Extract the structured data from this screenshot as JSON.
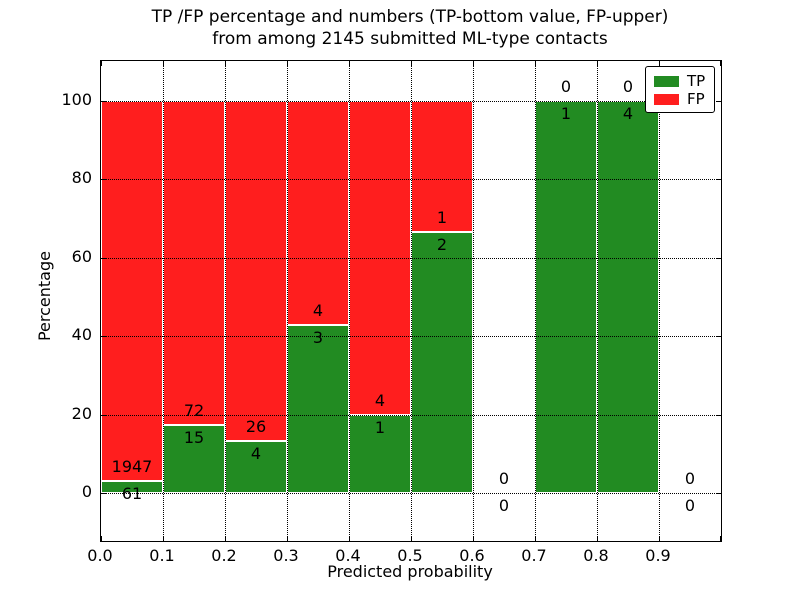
{
  "title": {
    "line1": "TP /FP percentage and numbers (TP-bottom value, FP-upper)",
    "line2": "from among 2145 submitted ML-type contacts"
  },
  "axes": {
    "xlabel": "Predicted probability",
    "ylabel": "Percentage",
    "x_ticks": [
      "0.0",
      "0.1",
      "0.2",
      "0.3",
      "0.4",
      "0.5",
      "0.6",
      "0.7",
      "0.8",
      "0.9"
    ],
    "y_ticks": [
      "0",
      "20",
      "40",
      "60",
      "80",
      "100"
    ],
    "y_tick_values": [
      0,
      20,
      40,
      60,
      80,
      100
    ],
    "grid": "dotted"
  },
  "legend": {
    "position": "upper right",
    "items": [
      {
        "label": "TP",
        "color": "#228B22"
      },
      {
        "label": "FP",
        "color": "#FF1E1E"
      }
    ]
  },
  "colors": {
    "tp": "#228B22",
    "fp": "#FF1E1E",
    "bar_edge": "#FFFFFF",
    "grid": "#000000",
    "background": "#FFFFFF"
  },
  "chart_data": {
    "type": "bar",
    "stacked": true,
    "normalized_to_percent": true,
    "title": "TP /FP percentage and numbers (TP-bottom value, FP-upper) from among 2145 submitted ML-type contacts",
    "xlabel": "Predicted probability",
    "ylabel": "Percentage",
    "xlim": [
      0.0,
      1.0
    ],
    "ylim": [
      0,
      100
    ],
    "x_bins": [
      [
        0.0,
        0.1
      ],
      [
        0.1,
        0.2
      ],
      [
        0.2,
        0.3
      ],
      [
        0.3,
        0.4
      ],
      [
        0.4,
        0.5
      ],
      [
        0.5,
        0.6
      ],
      [
        0.6,
        0.7
      ],
      [
        0.7,
        0.8
      ],
      [
        0.8,
        0.9
      ],
      [
        0.9,
        1.0
      ]
    ],
    "series": [
      {
        "name": "TP",
        "color": "#228B22",
        "counts": [
          61,
          15,
          4,
          3,
          1,
          2,
          0,
          1,
          4,
          0
        ]
      },
      {
        "name": "FP",
        "color": "#FF1E1E",
        "counts": [
          1947,
          72,
          26,
          4,
          4,
          1,
          0,
          0,
          0,
          0
        ]
      }
    ],
    "tp_percent_heights": [
      3.0,
      17.2,
      13.3,
      42.9,
      20.0,
      66.7,
      null,
      100.0,
      100.0,
      null
    ],
    "total_contacts": 2145,
    "legend_position": "upper right",
    "grid": "dotted"
  }
}
